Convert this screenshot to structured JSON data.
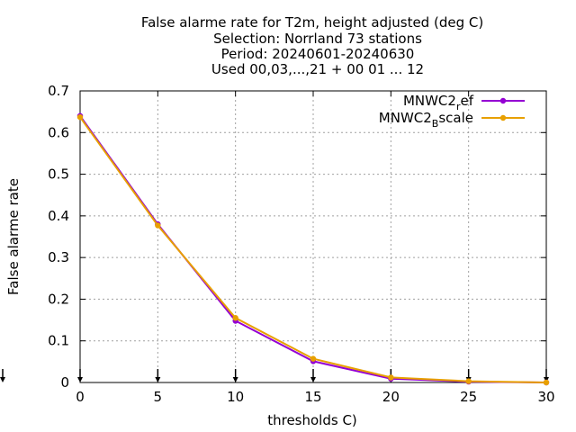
{
  "chart_data": {
    "type": "line",
    "title_lines": [
      "False alarme rate  for T2m, height adjusted (deg C)",
      "Selection: Norrland     73 stations",
      "Period: 20240601-20240630",
      "Used 00,03,...,21 + 00 01 ... 12"
    ],
    "xlabel": "thresholds C)",
    "ylabel": "False alarme rate",
    "xlim": [
      0,
      30
    ],
    "ylim": [
      0,
      0.7
    ],
    "x_ticks": [
      "0",
      "5",
      "10",
      "15",
      "20",
      "25",
      "30"
    ],
    "y_ticks": [
      "0",
      "0.1",
      "0.2",
      "0.3",
      "0.4",
      "0.5",
      "0.6",
      "0.7"
    ],
    "grid": true,
    "legend_position": "top-right",
    "x": [
      0,
      5,
      10,
      15,
      20,
      25,
      30
    ],
    "series": [
      {
        "name": "MNWC2_ref",
        "legend_main": "MNWC2",
        "legend_sub": "r",
        "legend_tail": "ef",
        "color": "#9400d3",
        "values": [
          0.64,
          0.38,
          0.148,
          0.051,
          0.009,
          0.002,
          0.0
        ]
      },
      {
        "name": "MNWC2_Bscale",
        "legend_main": "MNWC2",
        "legend_sub": "B",
        "legend_tail": "scale",
        "color": "#e8a000",
        "values": [
          0.637,
          0.377,
          0.155,
          0.057,
          0.012,
          0.003,
          0.0
        ]
      }
    ]
  }
}
